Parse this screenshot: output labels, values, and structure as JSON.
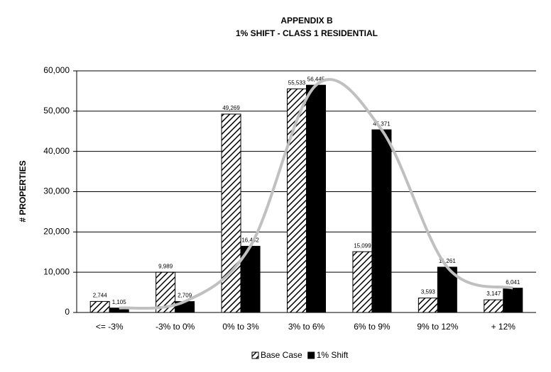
{
  "chart_data": {
    "type": "bar",
    "title": "APPENDIX B",
    "subtitle": "1% SHIFT - CLASS 1 RESIDENTIAL",
    "y_label": "# PROPERTIES",
    "categories": [
      "<= -3%",
      "-3% to  0%",
      "0% to  3%",
      "3% to 6%",
      "6% to 9%",
      "9% to 12%",
      "+ 12%"
    ],
    "series": [
      {
        "name": "Base Case",
        "color": "#000000",
        "pattern": "hatch",
        "values": [
          2744,
          9989,
          49269,
          55533,
          15099,
          3593,
          3147
        ],
        "value_labels": [
          "2,744",
          "9,989",
          "49,269",
          "55,533",
          "15,099",
          "3,593",
          "3,147"
        ]
      },
      {
        "name": "1% Shift",
        "color": "#000000",
        "values": [
          1105,
          2709,
          16442,
          56445,
          45371,
          11261,
          6041
        ],
        "value_labels": [
          "1,105",
          "2,709",
          "16,442",
          "56,445",
          "45,371",
          "11,261",
          "6,041"
        ]
      }
    ],
    "trend_color": "#c0c0c0",
    "ylim": [
      0,
      60000
    ],
    "yticks": [
      {
        "value": 0,
        "label": "0"
      },
      {
        "value": 10000,
        "label": "10,000"
      },
      {
        "value": 20000,
        "label": "20,000"
      },
      {
        "value": 30000,
        "label": "30,000"
      },
      {
        "value": 40000,
        "label": "40,000"
      },
      {
        "value": 50000,
        "label": "50,000"
      },
      {
        "value": 60000,
        "label": "60,000"
      }
    ],
    "grid": true,
    "legend": "bottom"
  }
}
